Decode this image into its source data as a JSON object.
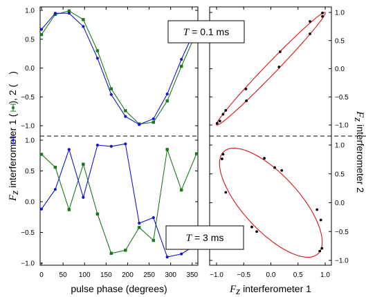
{
  "chart_data": {
    "type": "line",
    "labels": {
      "x_left": "pulse phase (degrees)",
      "x_right_var": "F",
      "x_right_sub": "z",
      "x_right_rest": "interferometer 1",
      "y_left_var": "F",
      "y_left_sub": "z",
      "y_left_rest": "interferometer 1 (",
      "y_left_mid": "), 2 (",
      "y_left_end": ")",
      "y_right_var": "F",
      "y_right_sub": "z",
      "y_right_rest": "interferometer 2",
      "box_top_var": "T",
      "box_top_rest": "= 0.1 ms",
      "box_bottom_var": "T",
      "box_bottom_rest": "= 3 ms"
    },
    "colors": {
      "interferometer1": "#1414cc",
      "interferometer2": "#1a7a1a",
      "ellipse": "#e01010"
    },
    "x_ticks": [
      "0",
      "50",
      "100",
      "150",
      "200",
      "250",
      "300",
      "350"
    ],
    "x_ticks_right": [
      "−1.0",
      "−0.5",
      "0.0",
      "0.5",
      "1.0"
    ],
    "y_ticks": [
      "1.0",
      "0.5",
      "0.0",
      "−0.5",
      "−1.0"
    ],
    "xlim": [
      0,
      360
    ],
    "ylim": [
      -1,
      1
    ],
    "top": {
      "x": [
        0,
        32,
        64,
        97,
        130,
        162,
        195,
        227,
        260,
        292,
        325,
        360
      ],
      "interferometer1": [
        0.67,
        0.95,
        0.95,
        0.72,
        0.17,
        -0.46,
        -0.84,
        -0.98,
        -0.88,
        -0.45,
        0.15,
        0.72
      ],
      "interferometer2": [
        0.58,
        0.93,
        0.99,
        0.84,
        0.3,
        -0.36,
        -0.74,
        -0.97,
        -0.94,
        -0.57,
        0.03,
        0.62
      ],
      "correlation": [
        [
          -0.99,
          -0.97
        ],
        [
          -0.94,
          -0.93
        ],
        [
          -0.83,
          -0.74
        ],
        [
          -0.45,
          -0.57
        ],
        [
          0.15,
          0.03
        ],
        [
          0.72,
          0.62
        ],
        [
          0.95,
          0.93
        ],
        [
          0.95,
          0.99
        ],
        [
          0.72,
          0.84
        ],
        [
          0.17,
          0.3
        ],
        [
          -0.46,
          -0.36
        ],
        [
          -0.88,
          -0.81
        ]
      ]
    },
    "bottom": {
      "x": [
        0,
        32,
        64,
        97,
        130,
        162,
        195,
        227,
        260,
        292,
        325,
        360
      ],
      "interferometer1": [
        -0.12,
        0.2,
        0.85,
        0.07,
        0.92,
        0.9,
        0.94,
        -0.35,
        -0.26,
        -0.9,
        -0.85,
        -0.7
      ],
      "interferometer2": [
        0.77,
        0.56,
        -0.13,
        0.61,
        -0.2,
        -0.84,
        -0.79,
        -0.42,
        -0.63,
        0.85,
        0.19,
        0.78
      ],
      "correlation": [
        [
          -0.88,
          0.84
        ],
        [
          -0.83,
          0.18
        ],
        [
          -0.35,
          -0.42
        ],
        [
          -0.26,
          -0.5
        ],
        [
          0.07,
          0.61
        ],
        [
          0.2,
          0.56
        ],
        [
          -0.12,
          0.77
        ],
        [
          0.85,
          -0.12
        ],
        [
          0.92,
          -0.3
        ],
        [
          0.94,
          -0.79
        ],
        [
          0.9,
          -0.84
        ],
        [
          -0.9,
          0.76
        ]
      ]
    },
    "top_ellipse": {
      "center": [
        0,
        0
      ],
      "semi_major": 1.414,
      "semi_minor": 0.1,
      "angle_deg": 45
    },
    "bottom_ellipse": {
      "center": [
        0,
        0
      ],
      "semi_major": 1.24,
      "semi_minor": 0.5,
      "angle_deg": -45
    }
  }
}
